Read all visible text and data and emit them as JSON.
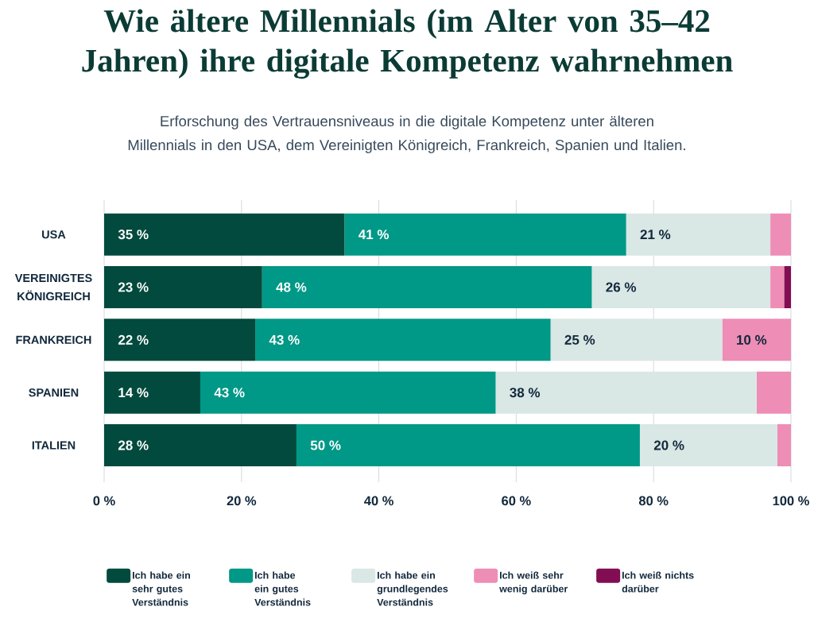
{
  "chart_data": {
    "type": "bar",
    "orientation": "horizontal",
    "stacked": true,
    "title": "Wie ältere Millennials (im Alter von 35–42 Jahren) ihre digitale Kompetenz wahrnehmen",
    "subtitle": "Erforschung des Vertrauensniveaus in die digitale Kompetenz unter älteren Millennials in den USA, dem Vereinigten Königreich, Frankreich, Spanien und Italien.",
    "categories": [
      "USA",
      "VEREINIGTES KÖNIGREICH",
      "FRANKREICH",
      "SPANIEN",
      "ITALIEN"
    ],
    "series": [
      {
        "name": "Ich habe ein sehr gutes Verständnis",
        "color": "#014a3d",
        "values": [
          35,
          23,
          22,
          14,
          28
        ],
        "value_labels": [
          "35 %",
          "23 %",
          "22 %",
          "14 %",
          "28 %"
        ]
      },
      {
        "name": "Ich habe ein gutes Verständnis",
        "color": "#009886",
        "values": [
          41,
          48,
          43,
          43,
          50
        ],
        "value_labels": [
          "41 %",
          "48 %",
          "43 %",
          "43 %",
          "50 %"
        ]
      },
      {
        "name": "Ich habe ein grundlegendes Verständnis",
        "color": "#d9e7e5",
        "values": [
          21,
          26,
          25,
          38,
          20
        ],
        "value_labels": [
          "21 %",
          "26 %",
          "25 %",
          "38 %",
          "20 %"
        ]
      },
      {
        "name": "Ich weiß sehr wenig darüber",
        "color": "#ee8db6",
        "values": [
          3,
          2,
          10,
          5,
          2
        ],
        "value_labels": [
          null,
          null,
          "10 %",
          null,
          null
        ]
      },
      {
        "name": "Ich weiß nichts darüber",
        "color": "#820d52",
        "values": [
          0,
          1,
          0,
          0,
          0
        ],
        "value_labels": [
          null,
          null,
          null,
          null,
          null
        ]
      }
    ],
    "xlim": [
      0,
      100
    ],
    "xticks": [
      {
        "value": 0,
        "label": "0 %"
      },
      {
        "value": 20,
        "label": "20 %"
      },
      {
        "value": 40,
        "label": "40 %"
      },
      {
        "value": 60,
        "label": "60 %"
      },
      {
        "value": 80,
        "label": "80 %"
      },
      {
        "value": 100,
        "label": "100 %"
      }
    ],
    "grid": "x",
    "legend": "bottom"
  }
}
